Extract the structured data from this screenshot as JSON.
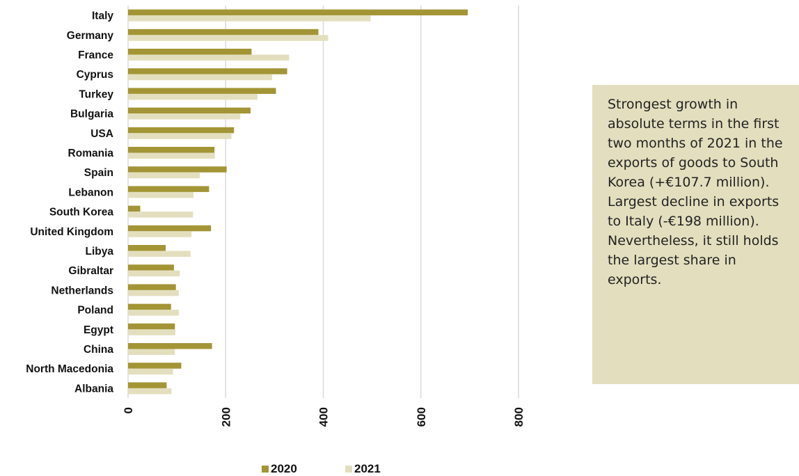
{
  "chart_data": {
    "type": "bar",
    "orientation": "horizontal",
    "categories": [
      "Italy",
      "Germany",
      "France",
      "Cyprus",
      "Turkey",
      "Bulgaria",
      "USA",
      "Romania",
      "Spain",
      "Lebanon",
      "South Korea",
      "United Kingdom",
      "Libya",
      "Gibraltar",
      "Netherlands",
      "Poland",
      "Egypt",
      "China",
      "North Macedonia",
      "Albania"
    ],
    "series": [
      {
        "name": "2020",
        "color": "#a39535",
        "values": [
          696,
          390,
          253,
          326,
          303,
          251,
          217,
          177,
          202,
          166,
          25,
          170,
          77,
          94,
          98,
          88,
          96,
          172,
          109,
          79
        ]
      },
      {
        "name": "2021",
        "color": "#e3dfbe",
        "values": [
          497,
          410,
          330,
          295,
          265,
          230,
          212,
          178,
          147,
          134,
          133,
          130,
          128,
          106,
          104,
          104,
          97,
          96,
          92,
          89
        ]
      }
    ],
    "xlim": [
      0,
      800
    ],
    "xticks": [
      0,
      200,
      400,
      600,
      800
    ],
    "grid": true,
    "legend": "bottom",
    "title": "",
    "xlabel": "",
    "ylabel": ""
  },
  "annotation": {
    "text": "Strongest growth in absolute terms in the first two months of 2021 in the exports of goods to South Korea (+€107.7 million). Largest decline in exports to Italy (-€198 million). Nevertheless, it still holds the largest share in exports."
  }
}
